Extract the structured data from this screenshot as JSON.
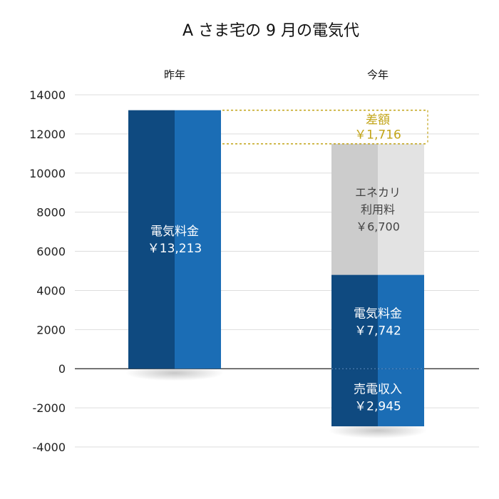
{
  "chart_data": {
    "type": "bar",
    "title": "A さま宅の 9 月の電気代",
    "categories": [
      "昨年",
      "今年"
    ],
    "ylim": [
      -4000,
      14000
    ],
    "yticks": [
      14000,
      12000,
      10000,
      8000,
      6000,
      4000,
      2000,
      0,
      -2000,
      -4000
    ],
    "grid": true,
    "bars": [
      {
        "category": "昨年",
        "segments": [
          {
            "label": "電気料金",
            "amount_label": "￥13,213",
            "from": 0,
            "to": 13213,
            "color_dark": "#0f4a80",
            "color_light": "#1b6db5",
            "text_style": "white"
          }
        ]
      },
      {
        "category": "今年",
        "segments": [
          {
            "label": "売電収入",
            "amount_label": "￥2,945",
            "from": -2945,
            "to": 0,
            "color_dark": "#0f4a80",
            "color_light": "#1b6db5",
            "text_style": "white"
          },
          {
            "label": "電気料金",
            "amount_label": "￥7,742",
            "from": 0,
            "to": 4797,
            "color_dark": "#0f4a80",
            "color_light": "#1b6db5",
            "text_style": "white"
          },
          {
            "label": "エネカリ\n利用料",
            "amount_label": "￥6,700",
            "from": 4797,
            "to": 11497,
            "color_dark": "#cccccc",
            "color_light": "#e3e3e3",
            "text_style": "gray"
          }
        ]
      }
    ],
    "difference": {
      "label": "差額",
      "amount_label": "￥1,716",
      "upper": 13213,
      "lower": 11497,
      "color": "#c2a417"
    }
  }
}
